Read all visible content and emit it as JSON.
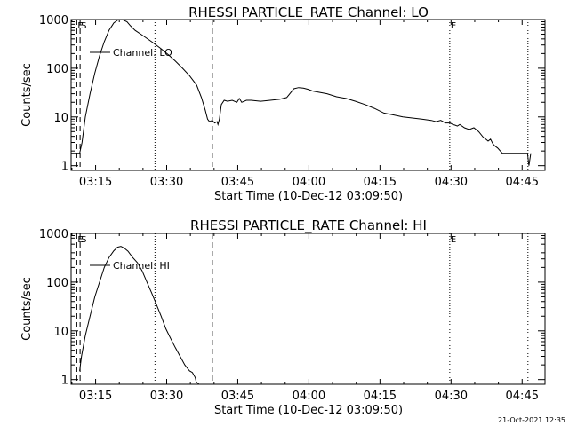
{
  "chart_data": [
    {
      "type": "line",
      "title": "RHESSI PARTICLE_RATE Channel: LO",
      "xlabel": "Start Time (10-Dec-12 03:09:50)",
      "ylabel": "Counts/sec",
      "yscale": "log",
      "ylim": [
        0.8,
        1000
      ],
      "xlim_minutes": [
        0,
        100
      ],
      "xtick_labels": [
        "03:15",
        "03:30",
        "03:45",
        "04:00",
        "04:15",
        "04:30",
        "04:45"
      ],
      "xtick_minutes": [
        5.17,
        20.17,
        35.17,
        50.17,
        65.17,
        80.17,
        95.17
      ],
      "ytick_labels": [
        "1",
        "10",
        "100",
        "1000"
      ],
      "ytick_values": [
        1,
        10,
        100,
        1000
      ],
      "legend": "Channel: LO",
      "markers": [
        {
          "label": "E",
          "minute": 1.2,
          "style": "dash"
        },
        {
          "label": "S",
          "minute": 1.9,
          "style": "dash"
        },
        {
          "label": "",
          "minute": 17.7,
          "style": "dot"
        },
        {
          "label": "",
          "minute": 29.8,
          "style": "dash"
        },
        {
          "label": "E",
          "minute": 79.9,
          "style": "dot"
        },
        {
          "label": "",
          "minute": 96.4,
          "style": "dot"
        }
      ],
      "series": [
        {
          "x": [
            0.0,
            1.0,
            1.8,
            2.3,
            3.0,
            4.0,
            5.0,
            6.0,
            7.0,
            8.0,
            9.0,
            10.0,
            11.0,
            11.8,
            12.5,
            13.5,
            15.0,
            17.0,
            19.0,
            20.5,
            22.0,
            23.5,
            25.0,
            26.5,
            27.5,
            28.3,
            28.8,
            29.2,
            29.8,
            30.3,
            30.8,
            31.0,
            31.3,
            31.7,
            32.3,
            33.0,
            34.0,
            35.0,
            35.5,
            36.0,
            37.0,
            38.0,
            40.0,
            42.0,
            44.0,
            45.5,
            47.0,
            48.0,
            49.0,
            50.0,
            51.0,
            52.5,
            54.0,
            56.0,
            58.0,
            60.0,
            62.0,
            64.0,
            66.0,
            68.0,
            70.0,
            72.0,
            74.0,
            76.0,
            77.0,
            78.0,
            79.0,
            80.0,
            80.5,
            81.0,
            81.5,
            82.0,
            83.0,
            84.0,
            85.0,
            86.0,
            87.0,
            87.5,
            88.0,
            88.5,
            89.0,
            89.5,
            90.0,
            91.0,
            92.0,
            93.0,
            94.0,
            94.5,
            95.0,
            95.5,
            96.0,
            96.3,
            96.6,
            97.0
          ],
          "y": [
            1.8,
            1.8,
            1.8,
            3.0,
            10.0,
            30.0,
            80.0,
            180.0,
            350.0,
            600.0,
            850.0,
            1000.0,
            980.0,
            900.0,
            750.0,
            600.0,
            480.0,
            350.0,
            250.0,
            190.0,
            140.0,
            100.0,
            70.0,
            45.0,
            25.0,
            14.0,
            9.0,
            8.0,
            8.5,
            7.5,
            8.0,
            7.0,
            9.0,
            18.0,
            22.0,
            21.0,
            22.0,
            20.0,
            24.0,
            20.0,
            22.0,
            22.0,
            21.0,
            22.0,
            23.0,
            25.0,
            38.0,
            40.0,
            39.0,
            37.0,
            34.0,
            32.0,
            30.0,
            26.0,
            24.0,
            21.0,
            18.0,
            15.0,
            12.0,
            11.0,
            10.0,
            9.5,
            9.0,
            8.5,
            8.0,
            8.5,
            7.5,
            7.5,
            7.0,
            6.8,
            6.5,
            7.0,
            6.0,
            5.5,
            6.0,
            5.0,
            3.8,
            3.5,
            3.2,
            3.5,
            2.8,
            2.5,
            2.3,
            1.8,
            1.8,
            1.8,
            1.8,
            1.8,
            1.8,
            1.8,
            1.8,
            1.8,
            1.0,
            1.8
          ]
        }
      ]
    },
    {
      "type": "line",
      "title": "RHESSI PARTICLE_RATE Channel: HI",
      "xlabel": "Start Time (10-Dec-12 03:09:50)",
      "ylabel": "Counts/sec",
      "yscale": "log",
      "ylim": [
        0.8,
        1000
      ],
      "xlim_minutes": [
        0,
        100
      ],
      "xtick_labels": [
        "03:15",
        "03:30",
        "03:45",
        "04:00",
        "04:15",
        "04:30",
        "04:45"
      ],
      "xtick_minutes": [
        5.17,
        20.17,
        35.17,
        50.17,
        65.17,
        80.17,
        95.17
      ],
      "ytick_labels": [
        "1",
        "10",
        "100",
        "1000"
      ],
      "ytick_values": [
        1,
        10,
        100,
        1000
      ],
      "legend": "Channel: HI",
      "markers": [
        {
          "label": "E",
          "minute": 1.2,
          "style": "dash"
        },
        {
          "label": "S",
          "minute": 1.9,
          "style": "dash"
        },
        {
          "label": "",
          "minute": 17.7,
          "style": "dot"
        },
        {
          "label": "",
          "minute": 29.8,
          "style": "dash"
        },
        {
          "label": "E",
          "minute": 79.9,
          "style": "dot"
        },
        {
          "label": "",
          "minute": 96.4,
          "style": "dot"
        }
      ],
      "series": [
        {
          "x": [
            1.8,
            2.2,
            3.0,
            4.0,
            5.0,
            6.0,
            7.0,
            8.0,
            9.0,
            9.8,
            10.5,
            11.2,
            12.0,
            13.0,
            14.0,
            15.0,
            16.0,
            17.0,
            18.0,
            19.0,
            20.0,
            21.0,
            22.0,
            23.0,
            24.0,
            25.0,
            25.6,
            26.2,
            26.4,
            27.0
          ],
          "y": [
            1.5,
            3.0,
            8.0,
            20.0,
            50.0,
            100.0,
            200.0,
            320.0,
            440.0,
            520.0,
            540.0,
            500.0,
            430.0,
            320.0,
            250.0,
            170.0,
            100.0,
            60.0,
            35.0,
            20.0,
            11.0,
            7.0,
            4.5,
            3.0,
            2.0,
            1.5,
            1.4,
            1.1,
            0.9,
            0.8
          ]
        }
      ]
    }
  ],
  "footer": {
    "timestamp": "21-Oct-2021 12:35"
  }
}
